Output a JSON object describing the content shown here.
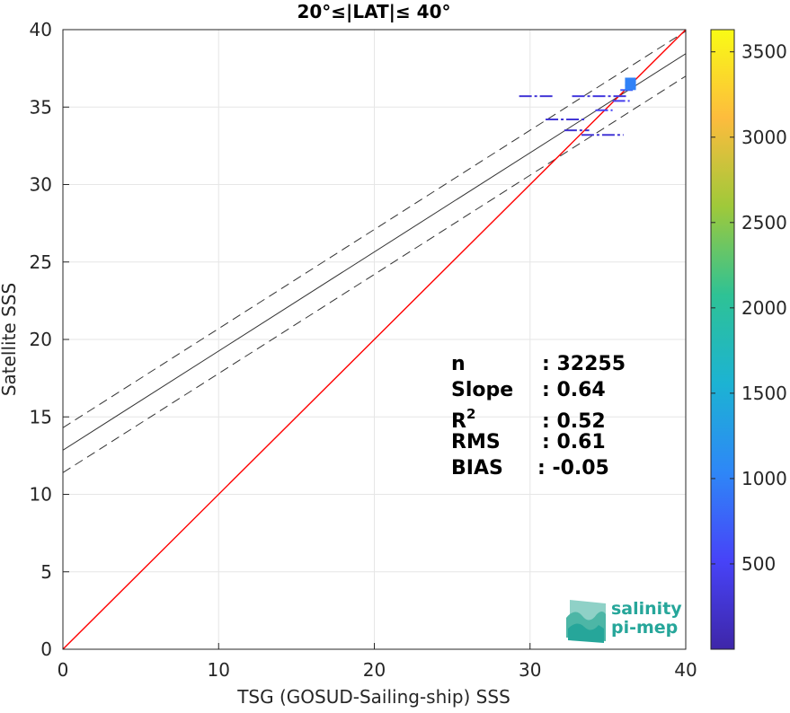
{
  "chart_data": {
    "type": "scatter",
    "title": "20°≤|LAT|≤ 40°",
    "xlabel": "TSG (GOSUD-Sailing-ship) SSS",
    "ylabel": "Satellite SSS",
    "xlim": [
      0,
      40
    ],
    "ylim": [
      0,
      40
    ],
    "xticks": [
      0,
      10,
      20,
      30,
      40
    ],
    "yticks": [
      0,
      5,
      10,
      15,
      20,
      25,
      30,
      35,
      40
    ],
    "grid": true,
    "one_to_one_line": {
      "color": "#ff0000",
      "from": [
        0,
        0
      ],
      "to": [
        40,
        40
      ]
    },
    "fit_line": {
      "slope": 0.64,
      "intercept": 12.85,
      "color": "#333333"
    },
    "fit_bounds_offset": 1.45,
    "density_segments": [
      {
        "x": [
          29.3,
          31.5
        ],
        "y": 35.7,
        "count": 300
      },
      {
        "x": [
          32.7,
          36.2
        ],
        "y": 35.7,
        "count": 350
      },
      {
        "x": [
          35.3,
          36.4
        ],
        "y": 35.4,
        "count": 450
      },
      {
        "x": [
          31.0,
          33.5
        ],
        "y": 34.2,
        "count": 300
      },
      {
        "x": [
          34.2,
          35.3
        ],
        "y": 34.8,
        "count": 500
      },
      {
        "x": [
          32.2,
          33.8
        ],
        "y": 33.5,
        "count": 250
      },
      {
        "x": [
          33.3,
          36.0
        ],
        "y": 33.2,
        "count": 300
      },
      {
        "x": [
          35.8,
          36.6
        ],
        "y": 36.1,
        "count": 700
      },
      {
        "x": [
          36.1,
          36.8
        ],
        "y": 36.4,
        "count": 900
      }
    ],
    "density_cluster": {
      "x": [
        36.1,
        36.8
      ],
      "y": [
        36.1,
        36.9
      ],
      "count": 1000
    },
    "stats": [
      {
        "label": "n",
        "value": ": 32255"
      },
      {
        "label": "Slope",
        "value": ": 0.64"
      },
      {
        "label": "R",
        "sup": "2",
        "value": ": 0.52"
      },
      {
        "label": "RMS",
        "value": ": 0.61"
      },
      {
        "label": "BIAS",
        "value": ": -0.05"
      }
    ],
    "colorbar": {
      "min": 0,
      "max": 3630,
      "ticks": [
        500,
        1000,
        1500,
        2000,
        2500,
        3000,
        3500
      ],
      "colors": [
        "#3e26a8",
        "#4743f8",
        "#2e87f7",
        "#1cb3d3",
        "#2ec295",
        "#9fc93a",
        "#fdbc3d",
        "#f9fb15"
      ]
    }
  },
  "logo": {
    "line1": "salinity",
    "line2": "pi-mep",
    "color": "#26a69a"
  }
}
